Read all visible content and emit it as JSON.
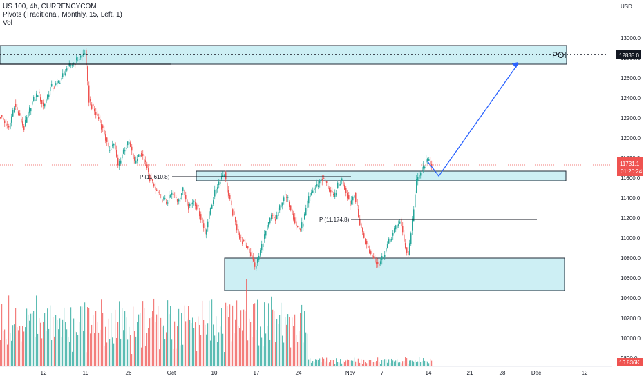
{
  "legend": {
    "symbol_line": "US 100, 4h, CURRENCYCOM",
    "pivots_line": "Pivots (Traditional, Monthly, 15, Left, 1)",
    "vol_line": "Vol"
  },
  "axis": {
    "currency": "USD",
    "y_ticks": [
      "13000.0",
      "12800.0",
      "12600.0",
      "12400.0",
      "12200.0",
      "12000.0",
      "11800.0",
      "11600.0",
      "11400.0",
      "11200.0",
      "11000.0",
      "10800.0",
      "10600.0",
      "10400.0",
      "10200.0",
      "10000.0",
      "9800.0"
    ],
    "x_ticks": [
      "12",
      "19",
      "26",
      "Oct",
      "10",
      "17",
      "24",
      "Nov",
      "7",
      "14",
      "21",
      "28",
      "Dec",
      "12"
    ]
  },
  "price_tags": {
    "poi_price": "12835.0",
    "last_price": "11731.1",
    "countdown": "01:20:24",
    "volume": "16.836K"
  },
  "annotations": {
    "poi_label": "POI",
    "pivot_upper": "P (11,610.8)",
    "pivot_lower": "P (11,174.8)"
  },
  "colors": {
    "bull": "#26a69a",
    "bear": "#ef5350",
    "zone_fill": "#cdeff4",
    "zone_stroke": "#1f2a36",
    "arrow": "#2962ff",
    "last_price_tag": "#ef5350",
    "poi_tag": "#131722"
  },
  "chart_data": {
    "type": "candlestick",
    "symbol": "US 100",
    "interval": "4h",
    "ylim": [
      9700,
      13200
    ],
    "price_path": [
      [
        0,
        12220
      ],
      [
        6,
        12090
      ],
      [
        10,
        12340
      ],
      [
        14,
        12200
      ],
      [
        17,
        12100
      ],
      [
        22,
        12330
      ],
      [
        27,
        12450
      ],
      [
        31,
        12320
      ],
      [
        36,
        12500
      ],
      [
        40,
        12530
      ],
      [
        44,
        12600
      ],
      [
        48,
        12700
      ],
      [
        52,
        12740
      ],
      [
        57,
        12800
      ],
      [
        61,
        12860
      ],
      [
        64,
        12380
      ],
      [
        67,
        12290
      ],
      [
        71,
        12190
      ],
      [
        75,
        12050
      ],
      [
        78,
        11880
      ],
      [
        82,
        11950
      ],
      [
        85,
        11720
      ],
      [
        89,
        11880
      ],
      [
        93,
        11950
      ],
      [
        97,
        11750
      ],
      [
        101,
        11860
      ],
      [
        105,
        11730
      ],
      [
        108,
        11600
      ],
      [
        112,
        11480
      ],
      [
        116,
        11400
      ],
      [
        120,
        11360
      ],
      [
        124,
        11440
      ],
      [
        128,
        11380
      ],
      [
        132,
        11480
      ],
      [
        136,
        11320
      ],
      [
        140,
        11380
      ],
      [
        144,
        11250
      ],
      [
        148,
        11050
      ],
      [
        152,
        11300
      ],
      [
        156,
        11500
      ],
      [
        160,
        11620
      ],
      [
        162,
        11650
      ],
      [
        164,
        11480
      ],
      [
        167,
        11300
      ],
      [
        170,
        11150
      ],
      [
        173,
        11000
      ],
      [
        176,
        10950
      ],
      [
        179,
        10900
      ],
      [
        182,
        10800
      ],
      [
        184,
        10700
      ],
      [
        187,
        10820
      ],
      [
        190,
        10980
      ],
      [
        193,
        11100
      ],
      [
        196,
        11220
      ],
      [
        199,
        11180
      ],
      [
        202,
        11300
      ],
      [
        205,
        11420
      ],
      [
        208,
        11380
      ],
      [
        211,
        11260
      ],
      [
        214,
        11120
      ],
      [
        217,
        11080
      ],
      [
        220,
        11220
      ],
      [
        223,
        11400
      ],
      [
        226,
        11480
      ],
      [
        229,
        11520
      ],
      [
        232,
        11600
      ],
      [
        235,
        11560
      ],
      [
        238,
        11480
      ],
      [
        241,
        11400
      ],
      [
        244,
        11520
      ],
      [
        247,
        11580
      ],
      [
        250,
        11470
      ],
      [
        253,
        11340
      ],
      [
        256,
        11460
      ],
      [
        259,
        11200
      ],
      [
        262,
        11050
      ],
      [
        265,
        10920
      ],
      [
        268,
        10840
      ],
      [
        271,
        10780
      ],
      [
        274,
        10740
      ],
      [
        277,
        10830
      ],
      [
        280,
        10930
      ],
      [
        283,
        11020
      ],
      [
        286,
        11100
      ],
      [
        289,
        11180
      ],
      [
        292,
        10960
      ],
      [
        295,
        10830
      ],
      [
        298,
        11180
      ],
      [
        301,
        11560
      ],
      [
        304,
        11660
      ],
      [
        307,
        11740
      ],
      [
        310,
        11780
      ],
      [
        312,
        11731
      ]
    ],
    "volume_pattern": [
      0.35,
      0.55,
      0.25,
      0.7,
      0.45,
      0.2,
      0.6,
      0.3,
      0.5,
      0.4
    ],
    "last_price": 11731.1,
    "pivots": [
      {
        "label": "P (11,610.8)",
        "value": 11610.8
      },
      {
        "label": "P (11,174.8)",
        "value": 11174.8
      }
    ],
    "zones": [
      {
        "label": "POI",
        "low": 12750,
        "high": 12950
      },
      {
        "label": "",
        "low": 11560,
        "high": 11650
      },
      {
        "label": "",
        "low": 10460,
        "high": 10780
      }
    ],
    "projection": [
      [
        11731,
        11600
      ],
      [
        11600,
        12740
      ]
    ],
    "x_ticks": [
      "12",
      "19",
      "26",
      "Oct",
      "10",
      "17",
      "24",
      "Nov",
      "7",
      "14",
      "21",
      "28",
      "Dec",
      "12"
    ],
    "y_ticks": [
      13000,
      12800,
      12600,
      12400,
      12200,
      12000,
      11800,
      11600,
      11400,
      11200,
      11000,
      10800,
      10600,
      10400,
      10200,
      10000,
      9800
    ],
    "volume_label": "16.836K"
  }
}
